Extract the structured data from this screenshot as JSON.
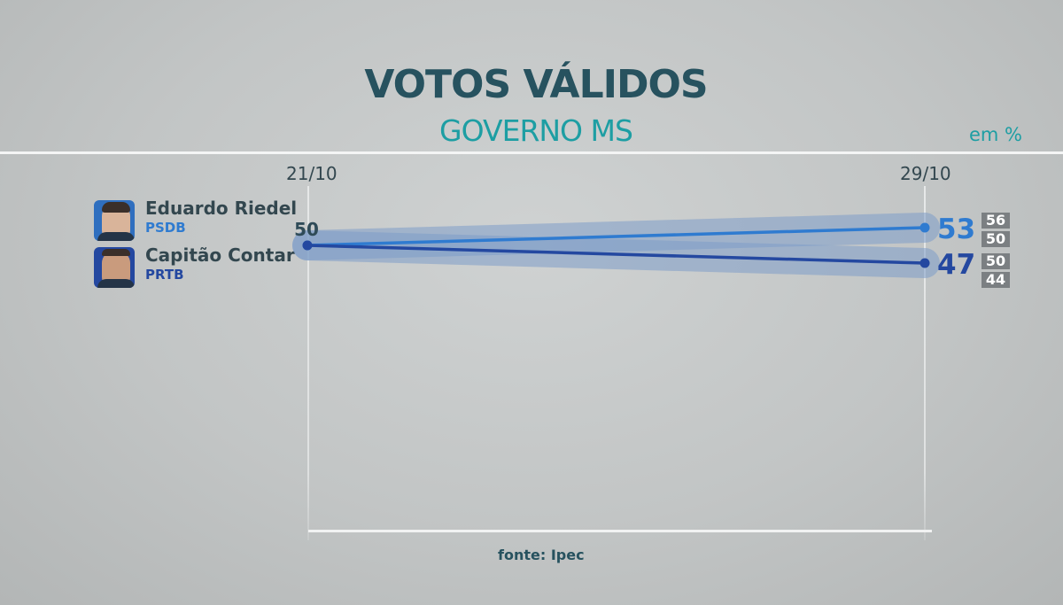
{
  "header": {
    "title": "VOTOS VÁLIDOS",
    "subtitle": "GOVERNO MS",
    "unit": "em %"
  },
  "source": "fonte: Ipec",
  "colors": {
    "title": "#27525f",
    "accent": "#1d9ea3",
    "riedel": "#2f7bd0",
    "contar": "#2448a0",
    "margin_band": "#7e9cc9"
  },
  "chart_data": {
    "type": "line",
    "x": [
      "21/10",
      "29/10"
    ],
    "series": [
      {
        "name": "Eduardo Riedel",
        "party": "PSDB",
        "values": [
          50,
          53
        ],
        "margin_of_error": [
          "",
          "56 / 50"
        ],
        "margin_upper": 56,
        "margin_lower": 50,
        "color": "#2f7bd0"
      },
      {
        "name": "Capitão Contar",
        "party": "PRTB",
        "values": [
          50,
          47
        ],
        "margin_of_error": [
          "",
          "50 / 44"
        ],
        "margin_upper": 50,
        "margin_lower": 44,
        "color": "#2448a0"
      }
    ],
    "start_label": "50",
    "end_labels": [
      "53",
      "47"
    ],
    "range_labels": [
      [
        "56",
        "50"
      ],
      [
        "50",
        "44"
      ]
    ],
    "ylim": [
      40,
      60
    ],
    "grid": false,
    "legend": "left"
  }
}
